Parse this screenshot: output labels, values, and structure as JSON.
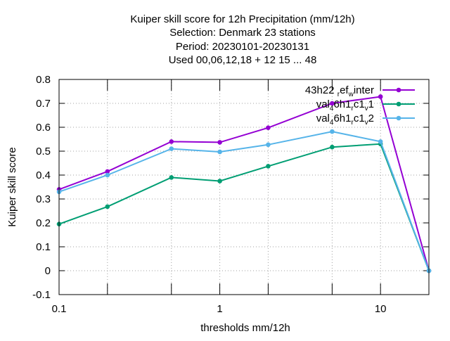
{
  "chart_data": {
    "type": "line",
    "title_lines": [
      "Kuiper skill score  for 12h Precipitation (mm/12h)",
      "Selection: Denmark      23 stations",
      "Period: 20230101-20230131",
      "Used  00,06,12,18  + 12 15 ... 48"
    ],
    "xlabel": "thresholds mm/12h",
    "ylabel": "Kuiper skill score",
    "x_scale": "log",
    "xlim": [
      0.1,
      20
    ],
    "ylim": [
      -0.1,
      0.8
    ],
    "x_ticks": [
      {
        "value": 0.1,
        "label": "0.1"
      },
      {
        "value": 1,
        "label": "1"
      },
      {
        "value": 10,
        "label": "10"
      }
    ],
    "x_minor_ticks": [
      0.2,
      0.5,
      2,
      5,
      20
    ],
    "y_ticks": [
      {
        "value": -0.1,
        "label": "-0.1"
      },
      {
        "value": 0,
        "label": "0"
      },
      {
        "value": 0.1,
        "label": "0.1"
      },
      {
        "value": 0.2,
        "label": "0.2"
      },
      {
        "value": 0.3,
        "label": "0.3"
      },
      {
        "value": 0.4,
        "label": "0.4"
      },
      {
        "value": 0.5,
        "label": "0.5"
      },
      {
        "value": 0.6,
        "label": "0.6"
      },
      {
        "value": 0.7,
        "label": "0.7"
      },
      {
        "value": 0.8,
        "label": "0.8"
      }
    ],
    "grid": true,
    "legend_position": "top-right",
    "x": [
      0.1,
      0.2,
      0.5,
      1,
      2,
      5,
      10,
      20
    ],
    "series": [
      {
        "legend": {
          "text": "43h22",
          "parts": [
            {
              "t": "43h22 "
            },
            {
              "t": "r",
              "sub": true
            },
            {
              "t": "ef"
            },
            {
              "t": "w",
              "sub": true
            },
            {
              "t": "inter"
            }
          ]
        },
        "color": "#9400d3",
        "values": [
          0.34,
          0.415,
          0.54,
          0.537,
          0.598,
          0.7,
          0.728,
          0.0
        ]
      },
      {
        "legend": {
          "text": "val",
          "parts": [
            {
              "t": "val"
            },
            {
              "t": "4",
              "sub": true
            },
            {
              "t": "6h1"
            },
            {
              "t": "r",
              "sub": true
            },
            {
              "t": "c1"
            },
            {
              "t": "v",
              "sub": true
            },
            {
              "t": "1"
            }
          ]
        },
        "color": "#009e73",
        "values": [
          0.195,
          0.268,
          0.39,
          0.375,
          0.437,
          0.517,
          0.53,
          0.0
        ]
      },
      {
        "legend": {
          "text": "val",
          "parts": [
            {
              "t": "val"
            },
            {
              "t": "4",
              "sub": true
            },
            {
              "t": "6h1"
            },
            {
              "t": "r",
              "sub": true
            },
            {
              "t": "c1"
            },
            {
              "t": "v",
              "sub": true
            },
            {
              "t": "2"
            }
          ]
        },
        "color": "#56b4e9",
        "values": [
          0.33,
          0.4,
          0.51,
          0.497,
          0.527,
          0.582,
          0.54,
          0.0
        ]
      }
    ]
  }
}
